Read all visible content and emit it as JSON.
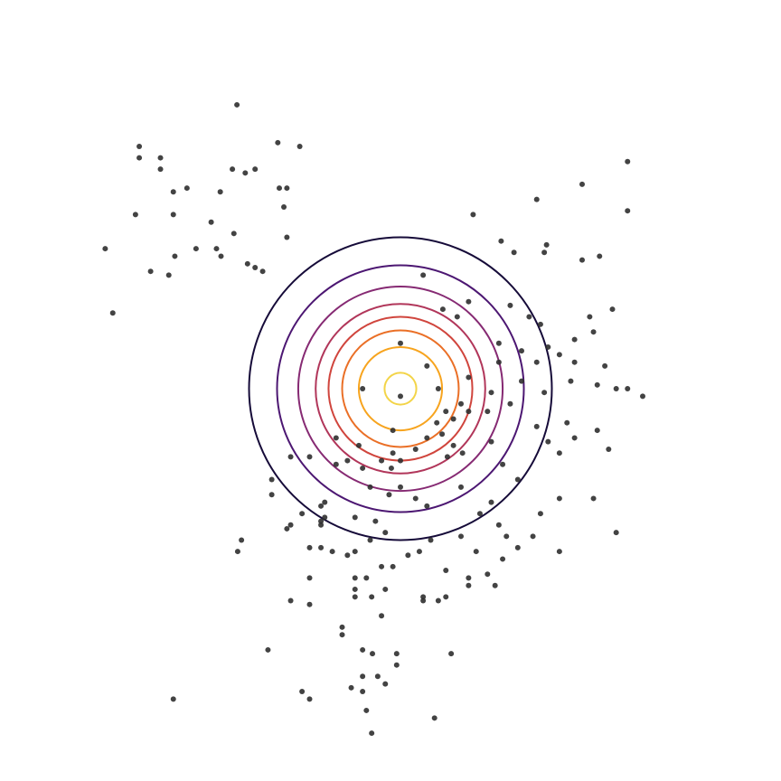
{
  "chart_data": {
    "type": "contour",
    "title": "",
    "xlabel": "",
    "ylabel": "",
    "axes_visible": false,
    "grid": false,
    "xlim": [
      -4.0,
      4.0
    ],
    "ylim": [
      -4.0,
      4.0
    ],
    "contour_center": [
      0.0,
      0.0
    ],
    "contour_levels": [
      {
        "radius": 0.21,
        "color": "#f3d448"
      },
      {
        "radius": 0.55,
        "color": "#f7a41e"
      },
      {
        "radius": 0.77,
        "color": "#ea6f26"
      },
      {
        "radius": 0.95,
        "color": "#d0453d"
      },
      {
        "radius": 1.12,
        "color": "#b1365a"
      },
      {
        "radius": 1.35,
        "color": "#862a73"
      },
      {
        "radius": 1.63,
        "color": "#4c1772"
      },
      {
        "radius": 2.0,
        "color": "#160b39"
      }
    ],
    "point_color": "#2f2f2f",
    "points": [
      [
        -2.16,
        3.75
      ],
      [
        -3.45,
        3.2
      ],
      [
        -3.45,
        3.05
      ],
      [
        -3.17,
        3.05
      ],
      [
        -3.17,
        2.9
      ],
      [
        -1.62,
        3.25
      ],
      [
        -1.33,
        3.2
      ],
      [
        -2.22,
        2.9
      ],
      [
        -2.05,
        2.85
      ],
      [
        -1.92,
        2.9
      ],
      [
        -3.0,
        2.6
      ],
      [
        -2.82,
        2.65
      ],
      [
        -2.38,
        2.6
      ],
      [
        -1.6,
        2.65
      ],
      [
        -1.5,
        2.65
      ],
      [
        -3.5,
        2.3
      ],
      [
        -3.0,
        2.3
      ],
      [
        -2.5,
        2.2
      ],
      [
        -1.54,
        2.4
      ],
      [
        -2.2,
        2.05
      ],
      [
        -1.5,
        2.0
      ],
      [
        -2.7,
        1.85
      ],
      [
        -2.43,
        1.85
      ],
      [
        -2.37,
        1.75
      ],
      [
        -2.98,
        1.75
      ],
      [
        -2.02,
        1.65
      ],
      [
        -1.92,
        1.6
      ],
      [
        -1.82,
        1.55
      ],
      [
        -3.3,
        1.55
      ],
      [
        -3.06,
        1.5
      ],
      [
        -3.9,
        1.85
      ],
      [
        -3.8,
        1.0
      ],
      [
        0.96,
        2.3
      ],
      [
        1.33,
        1.95
      ],
      [
        1.5,
        1.8
      ],
      [
        1.9,
        1.8
      ],
      [
        1.8,
        2.5
      ],
      [
        2.4,
        2.7
      ],
      [
        2.4,
        1.7
      ],
      [
        2.63,
        1.75
      ],
      [
        3.0,
        2.35
      ],
      [
        3.0,
        3.0
      ],
      [
        1.93,
        1.9
      ],
      [
        -0.6,
        -2.5
      ],
      [
        -1.2,
        -2.5
      ],
      [
        -1.45,
        -2.8
      ],
      [
        -1.2,
        -2.85
      ],
      [
        -0.77,
        -3.15
      ],
      [
        -0.77,
        -3.25
      ],
      [
        -1.75,
        -3.45
      ],
      [
        -0.5,
        -3.45
      ],
      [
        -0.37,
        -3.5
      ],
      [
        -0.2,
        -3.9
      ],
      [
        -0.05,
        -3.5
      ],
      [
        -0.05,
        -3.65
      ],
      [
        0.67,
        -3.5
      ],
      [
        0.45,
        -4.35
      ],
      [
        -1.3,
        -4.0
      ],
      [
        -1.2,
        -4.1
      ],
      [
        -0.65,
        -3.95
      ],
      [
        -0.5,
        -4.0
      ],
      [
        -0.45,
        -4.25
      ],
      [
        -0.38,
        -4.55
      ],
      [
        -0.5,
        -3.8
      ],
      [
        -0.3,
        -3.8
      ],
      [
        -3.0,
        -4.1
      ],
      [
        0.3,
        1.5
      ],
      [
        0.56,
        1.05
      ],
      [
        0.75,
        0.95
      ],
      [
        0.0,
        0.6
      ],
      [
        0.35,
        0.3
      ],
      [
        0.5,
        0.0
      ],
      [
        0.0,
        -0.1
      ],
      [
        0.9,
        1.15
      ],
      [
        0.6,
        -0.3
      ],
      [
        0.7,
        -0.4
      ],
      [
        0.48,
        -0.45
      ],
      [
        0.55,
        -0.6
      ],
      [
        0.35,
        -0.65
      ],
      [
        0.2,
        -0.8
      ],
      [
        0.0,
        -0.95
      ],
      [
        -0.25,
        -0.95
      ],
      [
        -0.55,
        -0.75
      ],
      [
        -0.85,
        -1.0
      ],
      [
        -1.0,
        -1.7
      ],
      [
        -1.05,
        -1.8
      ],
      [
        -1.3,
        -1.65
      ],
      [
        -1.05,
        -1.75
      ],
      [
        0.2,
        -1.45
      ],
      [
        0.35,
        -1.55
      ],
      [
        -0.15,
        -1.4
      ],
      [
        -0.4,
        -1.3
      ],
      [
        -0.6,
        -1.7
      ],
      [
        -0.33,
        -1.75
      ],
      [
        -0.2,
        -1.9
      ],
      [
        0.4,
        -2.0
      ],
      [
        0.8,
        -1.95
      ],
      [
        1.4,
        -1.95
      ],
      [
        1.0,
        -2.15
      ],
      [
        0.6,
        -2.4
      ],
      [
        0.9,
        -2.5
      ],
      [
        1.15,
        -2.45
      ],
      [
        1.25,
        -2.6
      ],
      [
        0.6,
        -2.75
      ],
      [
        0.5,
        -2.8
      ],
      [
        -0.1,
        -2.35
      ],
      [
        -0.25,
        -2.35
      ],
      [
        -0.45,
        -2.5
      ],
      [
        -0.6,
        -2.65
      ],
      [
        -0.6,
        -2.75
      ],
      [
        -0.38,
        -2.75
      ],
      [
        -0.2,
        -2.65
      ],
      [
        0.3,
        -2.8
      ],
      [
        0.3,
        -2.75
      ],
      [
        -0.1,
        -0.85
      ],
      [
        0.8,
        -0.2
      ],
      [
        1.15,
        -0.3
      ],
      [
        1.45,
        -0.2
      ],
      [
        1.95,
        -0.7
      ],
      [
        1.8,
        -0.5
      ],
      [
        0.0,
        -1.3
      ],
      [
        -0.1,
        -0.55
      ],
      [
        -0.5,
        -1.05
      ],
      [
        -0.7,
        -0.95
      ],
      [
        -0.85,
        -0.65
      ],
      [
        -1.0,
        -1.5
      ],
      [
        -1.2,
        -0.9
      ],
      [
        -1.05,
        -1.55
      ],
      [
        -1.45,
        -0.9
      ],
      [
        -1.2,
        -2.1
      ],
      [
        -1.05,
        -2.1
      ],
      [
        -0.9,
        -2.15
      ],
      [
        -0.7,
        -2.2
      ],
      [
        -0.6,
        -2.15
      ],
      [
        -0.4,
        -2.0
      ],
      [
        0.1,
        -2.2
      ],
      [
        0.25,
        -2.15
      ],
      [
        -0.12,
        -1.05
      ],
      [
        0.9,
        -0.3
      ],
      [
        0.9,
        0.15
      ],
      [
        0.62,
        -0.9
      ],
      [
        0.7,
        -0.75
      ],
      [
        0.82,
        -0.85
      ],
      [
        1.2,
        -0.05
      ],
      [
        1.2,
        -0.7
      ],
      [
        1.35,
        -1.0
      ],
      [
        1.55,
        -1.2
      ],
      [
        2.1,
        -0.85
      ],
      [
        2.3,
        -0.65
      ],
      [
        2.6,
        -0.55
      ],
      [
        2.1,
        -1.45
      ],
      [
        1.85,
        -1.65
      ],
      [
        1.75,
        -1.95
      ],
      [
        1.55,
        -2.1
      ],
      [
        1.35,
        -2.25
      ],
      [
        0.9,
        -2.6
      ],
      [
        1.05,
        -1.65
      ],
      [
        1.2,
        -1.5
      ],
      [
        1.3,
        -1.8
      ],
      [
        0.8,
        -1.3
      ],
      [
        1.45,
        1.1
      ],
      [
        1.7,
        0.95
      ],
      [
        1.85,
        0.85
      ],
      [
        1.95,
        0.55
      ],
      [
        2.1,
        0.45
      ],
      [
        2.25,
        0.1
      ],
      [
        2.3,
        0.65
      ],
      [
        2.5,
        0.95
      ],
      [
        2.7,
        0.3
      ],
      [
        2.85,
        0.0
      ],
      [
        3.0,
        0.0
      ],
      [
        2.75,
        -0.8
      ],
      [
        2.85,
        -1.9
      ],
      [
        3.2,
        -0.1
      ],
      [
        2.6,
        0.05
      ],
      [
        2.3,
        0.35
      ],
      [
        2.55,
        0.75
      ],
      [
        2.8,
        1.05
      ],
      [
        1.3,
        0.6
      ],
      [
        1.6,
        0.5
      ],
      [
        1.3,
        0.35
      ],
      [
        1.8,
        0.35
      ],
      [
        1.6,
        0.1
      ],
      [
        1.9,
        -0.05
      ],
      [
        2.2,
        -0.45
      ],
      [
        2.55,
        -1.45
      ],
      [
        2.1,
        -2.15
      ],
      [
        -0.5,
        0.0
      ],
      [
        -1.7,
        -1.2
      ],
      [
        -1.5,
        -1.85
      ],
      [
        -2.1,
        -2.0
      ],
      [
        -2.15,
        -2.15
      ],
      [
        -0.25,
        -3.0
      ],
      [
        -1.7,
        -1.4
      ],
      [
        -1.45,
        -1.8
      ]
    ]
  }
}
